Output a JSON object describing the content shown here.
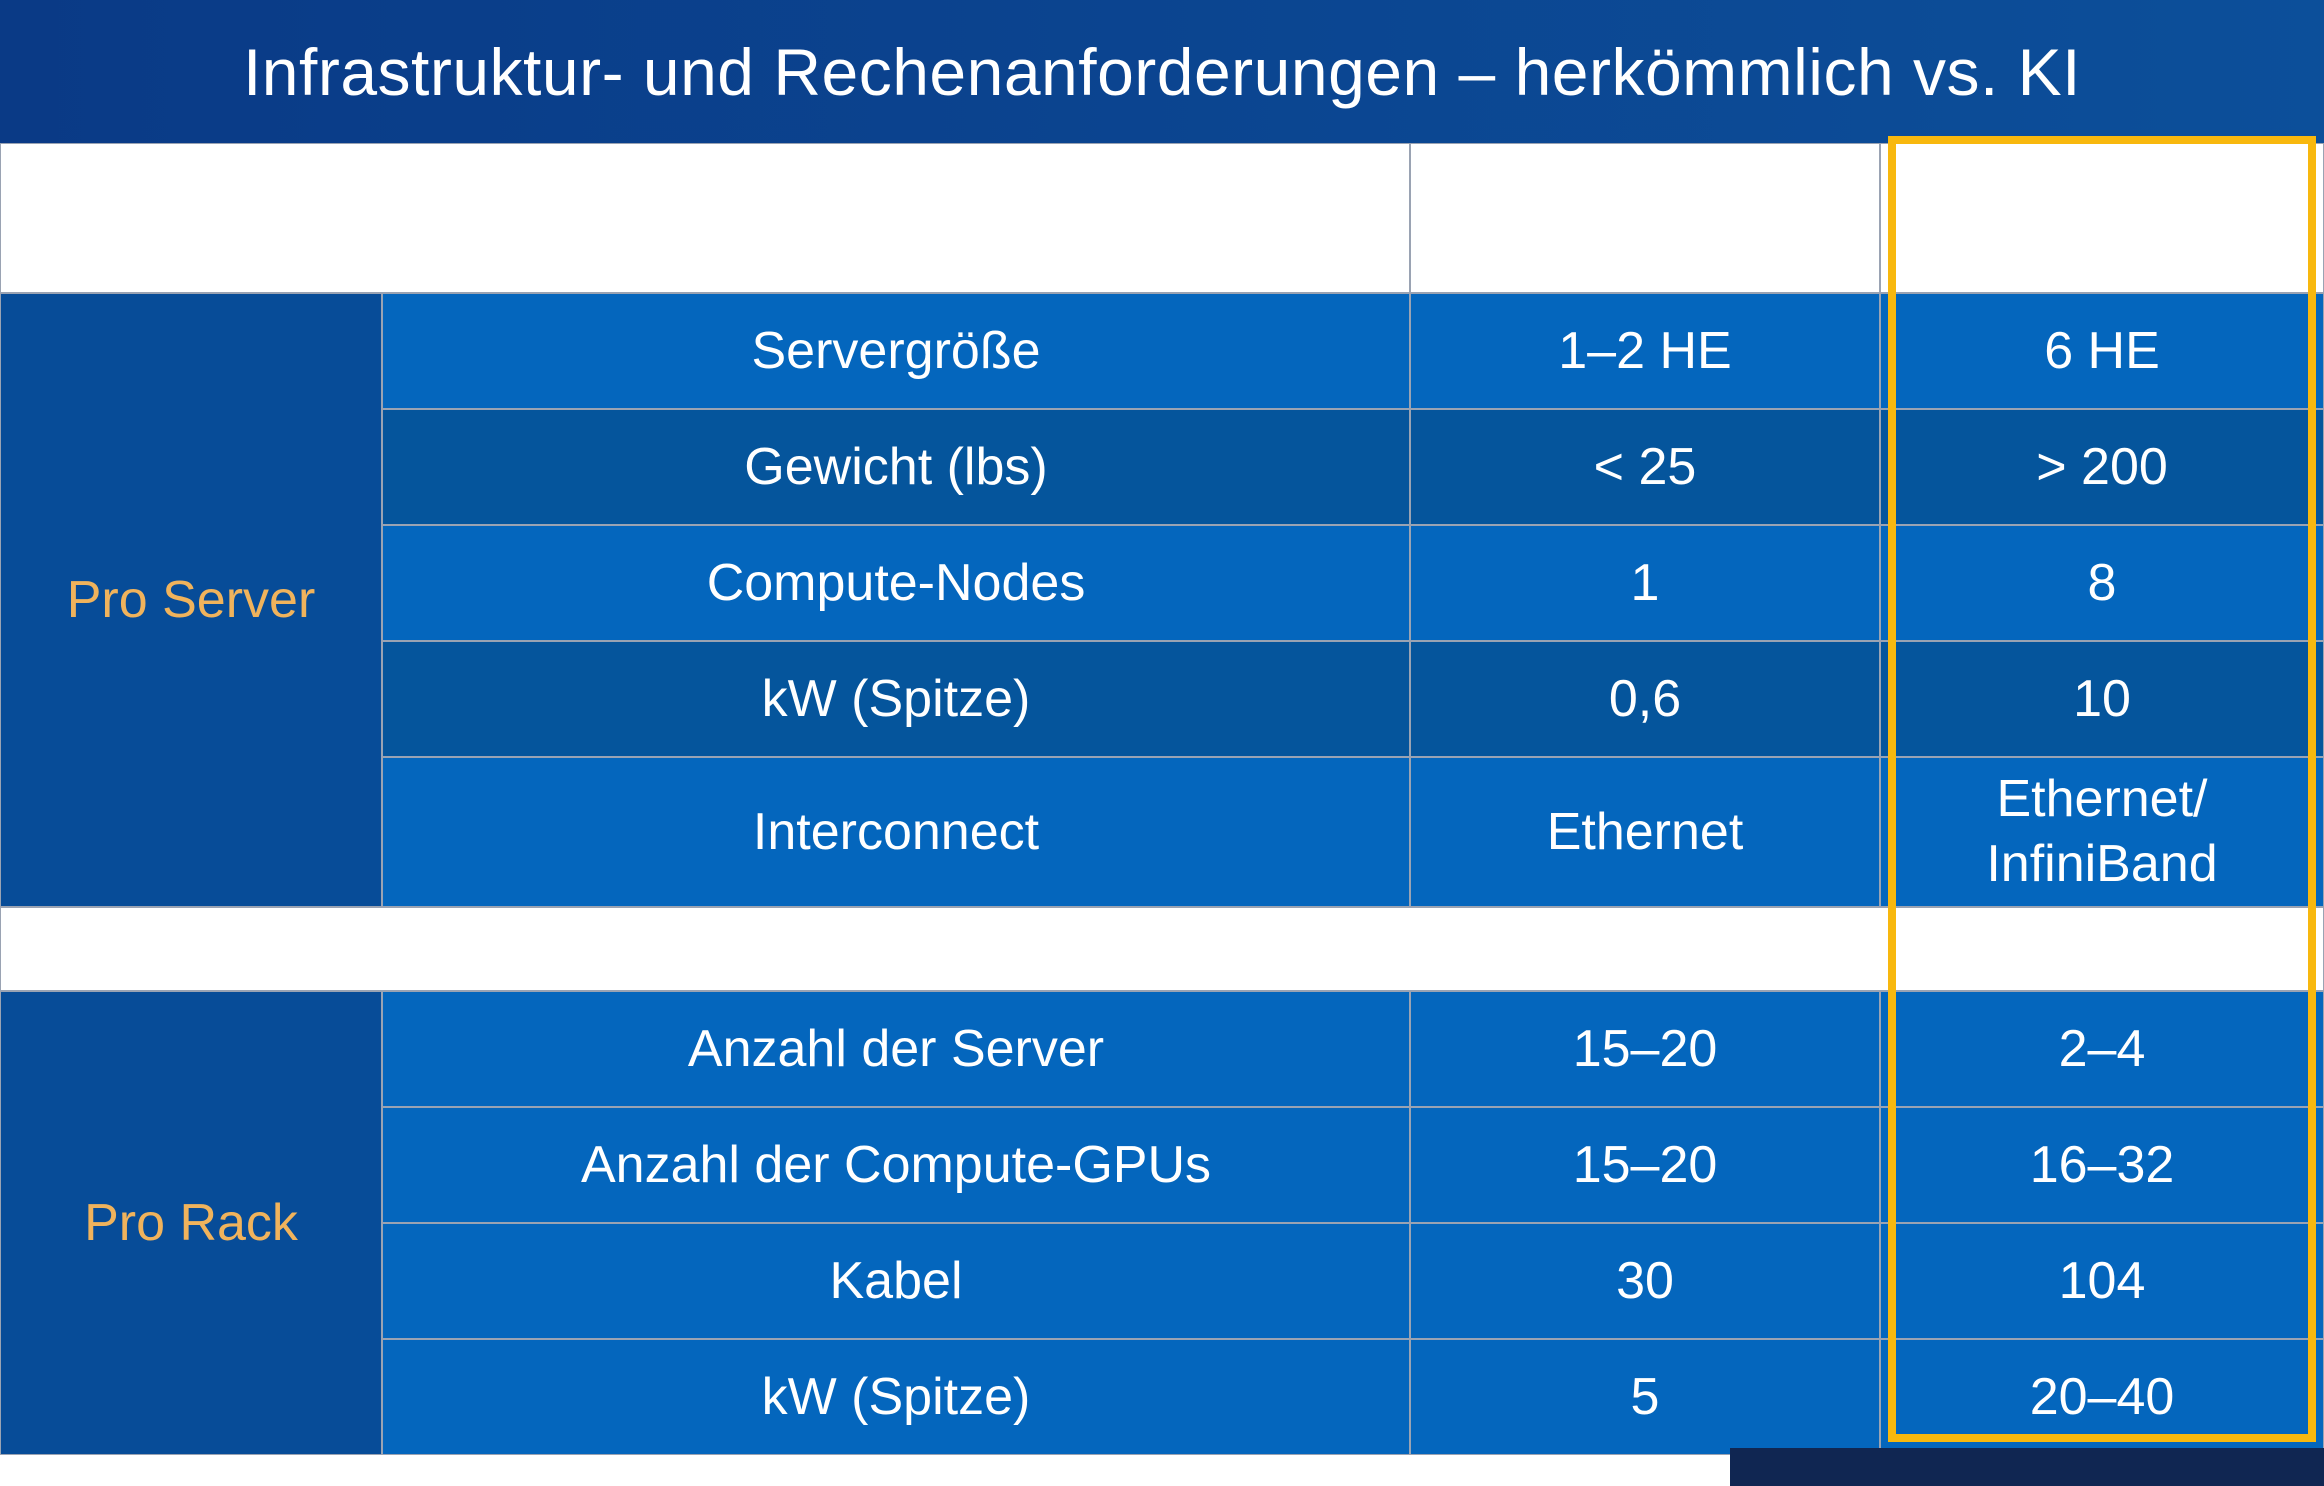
{
  "title": "Infrastruktur- und Rechenanforderungen – herkömmlich vs. KI",
  "chart_data": {
    "type": "table",
    "column_headers": [
      "",
      "",
      ""
    ],
    "groups": [
      {
        "label": "Pro Server",
        "rows": [
          {
            "metric": "Servergröße",
            "values": [
              "1–2 HE",
              "6 HE"
            ]
          },
          {
            "metric": "Gewicht (lbs)",
            "values": [
              "< 25",
              "> 200"
            ]
          },
          {
            "metric": "Compute-Nodes",
            "values": [
              "1",
              "8"
            ]
          },
          {
            "metric": "kW (Spitze)",
            "values": [
              "0,6",
              "10"
            ]
          },
          {
            "metric": "Interconnect",
            "values": [
              "Ethernet",
              "Ethernet/\nInfiniBand"
            ]
          }
        ]
      },
      {
        "label": "Pro Rack",
        "rows": [
          {
            "metric": "Anzahl der Server",
            "values": [
              "15–20",
              "2–4"
            ]
          },
          {
            "metric": "Anzahl der Compute-GPUs",
            "values": [
              "15–20",
              "16–32"
            ]
          },
          {
            "metric": "Kabel",
            "values": [
              "30",
              "104"
            ]
          },
          {
            "metric": "kW (Spitze)",
            "values": [
              "5",
              "20–40"
            ]
          }
        ]
      }
    ],
    "highlighted_column": 2,
    "colors": {
      "header_bg": "#0a4a94",
      "cell_light": "#0466bd",
      "cell_dark": "#05559c",
      "group_cell": "#074c98",
      "group_label": "#f0b35c",
      "highlight": "#f8b80e",
      "text": "#ffffff"
    }
  }
}
